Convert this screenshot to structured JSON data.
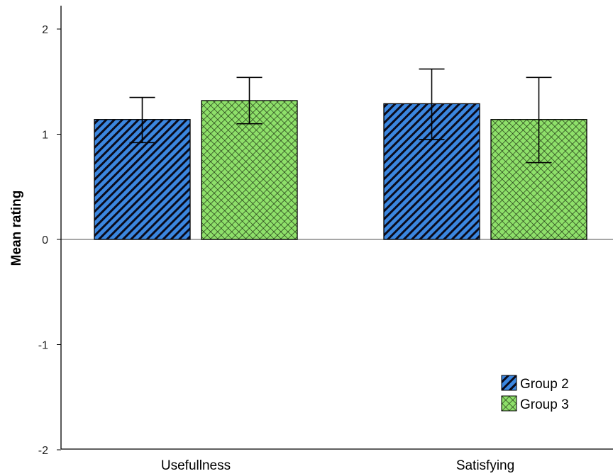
{
  "chart_data": {
    "type": "bar",
    "categories": [
      "Usefullness",
      "Satisfying"
    ],
    "series": [
      {
        "name": "Group 2",
        "values": [
          1.14,
          1.29
        ],
        "error_low": [
          0.92,
          0.95
        ],
        "error_high": [
          1.35,
          1.62
        ],
        "color": "#3b87e0",
        "pattern": "diagonal-stripes"
      },
      {
        "name": "Group 3",
        "values": [
          1.32,
          1.14
        ],
        "error_low": [
          1.1,
          0.73
        ],
        "error_high": [
          1.54,
          1.54
        ],
        "color": "#8ee06a",
        "pattern": "crosshatch"
      }
    ],
    "ylabel": "Mean rating",
    "xlabel": "",
    "ylim": [
      -2,
      2.2
    ],
    "yticks": [
      "2",
      "1",
      "0",
      "-1",
      "-2"
    ],
    "ytick_values": [
      2,
      1,
      0,
      -1,
      -2
    ],
    "legend_position": "bottom-right",
    "grid": false
  }
}
